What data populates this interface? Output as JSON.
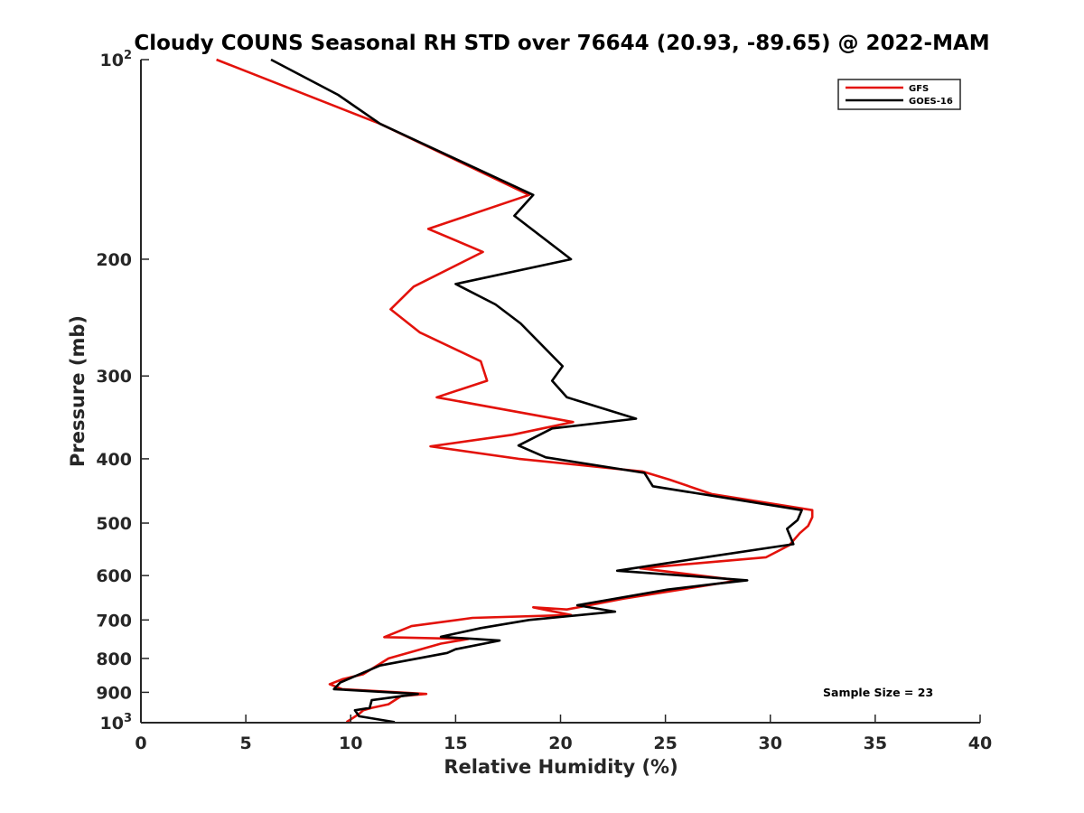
{
  "chart_data": {
    "type": "line",
    "title": "Cloudy COUNS Seasonal RH STD over 76644 (20.93, -89.65) @ 2022-MAM",
    "xlabel": "Relative Humidity (%)",
    "ylabel": "Pressure (mb)",
    "xlim": [
      0,
      40
    ],
    "ylim": [
      100,
      1000
    ],
    "yscale": "log",
    "yreverse": true,
    "xticks": [
      0,
      5,
      10,
      15,
      20,
      25,
      30,
      35,
      40
    ],
    "xtick_labels": [
      "0",
      "5",
      "10",
      "15",
      "20",
      "25",
      "30",
      "35",
      "40"
    ],
    "yticks": [
      {
        "value": 100,
        "base": "10",
        "exp": "2"
      },
      {
        "value": 200,
        "base": "200",
        "exp": ""
      },
      {
        "value": 300,
        "base": "300",
        "exp": ""
      },
      {
        "value": 400,
        "base": "400",
        "exp": ""
      },
      {
        "value": 500,
        "base": "500",
        "exp": ""
      },
      {
        "value": 600,
        "base": "600",
        "exp": ""
      },
      {
        "value": 700,
        "base": "700",
        "exp": ""
      },
      {
        "value": 800,
        "base": "800",
        "exp": ""
      },
      {
        "value": 900,
        "base": "900",
        "exp": ""
      },
      {
        "value": 1000,
        "base": "10",
        "exp": "3"
      }
    ],
    "legend_position": "top-right",
    "annotation": "Sample Size = 23",
    "series": [
      {
        "name": "GFS",
        "color": "#e3120b",
        "points": [
          [
            3.6,
            100
          ],
          [
            11.4,
            125
          ],
          [
            18.5,
            160
          ],
          [
            13.7,
            180
          ],
          [
            16.3,
            195
          ],
          [
            13,
            220
          ],
          [
            11.9,
            238
          ],
          [
            13.3,
            258
          ],
          [
            16.2,
            285
          ],
          [
            16.5,
            305
          ],
          [
            14.1,
            323
          ],
          [
            20.6,
            352
          ],
          [
            17.7,
            368
          ],
          [
            13.8,
            383
          ],
          [
            18,
            400
          ],
          [
            23.9,
            418
          ],
          [
            25.2,
            430
          ],
          [
            27.2,
            452
          ],
          [
            32,
            478
          ],
          [
            32,
            490
          ],
          [
            31.8,
            505
          ],
          [
            31.4,
            518
          ],
          [
            30.9,
            540
          ],
          [
            29.8,
            563
          ],
          [
            23.8,
            585
          ],
          [
            28.5,
            610
          ],
          [
            23,
            650
          ],
          [
            20.3,
            675
          ],
          [
            18.7,
            670
          ],
          [
            20.5,
            688
          ],
          [
            15.8,
            695
          ],
          [
            12.9,
            715
          ],
          [
            11.6,
            743
          ],
          [
            15.6,
            748
          ],
          [
            14.3,
            760
          ],
          [
            11.8,
            800
          ],
          [
            10.6,
            845
          ],
          [
            9.6,
            860
          ],
          [
            9.0,
            875
          ],
          [
            9.6,
            890
          ],
          [
            13.6,
            905
          ],
          [
            12.4,
            912
          ],
          [
            11.8,
            938
          ],
          [
            11,
            950
          ],
          [
            10.6,
            958
          ],
          [
            10.4,
            970
          ],
          [
            9.8,
            998
          ]
        ]
      },
      {
        "name": "GOES-16",
        "color": "#000000",
        "points": [
          [
            6.2,
            100
          ],
          [
            9.4,
            113
          ],
          [
            11.4,
            125
          ],
          [
            18.7,
            160
          ],
          [
            17.8,
            172
          ],
          [
            20.5,
            200
          ],
          [
            15,
            218
          ],
          [
            16.9,
            234
          ],
          [
            18.1,
            250
          ],
          [
            20.1,
            290
          ],
          [
            19.6,
            305
          ],
          [
            20.3,
            323
          ],
          [
            23.6,
            348
          ],
          [
            19.6,
            360
          ],
          [
            18,
            382
          ],
          [
            19.3,
            398
          ],
          [
            24,
            420
          ],
          [
            24.4,
            440
          ],
          [
            31.5,
            478
          ],
          [
            31.3,
            495
          ],
          [
            30.8,
            510
          ],
          [
            31.1,
            538
          ],
          [
            27.4,
            560
          ],
          [
            22.7,
            590
          ],
          [
            28.9,
            610
          ],
          [
            27.3,
            618
          ],
          [
            25.1,
            630
          ],
          [
            20.8,
            665
          ],
          [
            22.6,
            680
          ],
          [
            18.5,
            700
          ],
          [
            16.2,
            720
          ],
          [
            14.3,
            742
          ],
          [
            17.1,
            752
          ],
          [
            15,
            775
          ],
          [
            14.6,
            785
          ],
          [
            11.4,
            820
          ],
          [
            9.5,
            870
          ],
          [
            9.2,
            890
          ],
          [
            13.2,
            905
          ],
          [
            11,
            925
          ],
          [
            10.9,
            950
          ],
          [
            10.2,
            958
          ],
          [
            10.4,
            978
          ],
          [
            12.1,
            998
          ]
        ]
      }
    ]
  }
}
